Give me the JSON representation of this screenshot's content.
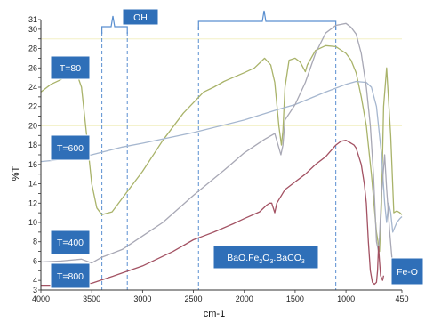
{
  "chart_data": {
    "type": "line",
    "xlabel": "cm-1",
    "ylabel": "%T",
    "xlim": [
      4000,
      450
    ],
    "ylim": [
      3,
      31
    ],
    "x_ticks": [
      4000,
      3500,
      3000,
      2500,
      2000,
      1500,
      1000,
      450
    ],
    "y_ticks": [
      3,
      4,
      5,
      6,
      7,
      8,
      9,
      10,
      11,
      12,
      13,
      14,
      15,
      16,
      17,
      18,
      19,
      20,
      21,
      22,
      23,
      24,
      25,
      26,
      27,
      28,
      29,
      30,
      31
    ],
    "y_tick_labels": [
      "3",
      "4",
      "",
      "6",
      "",
      "8",
      "",
      "10",
      "",
      "12",
      "",
      "14",
      "",
      "16",
      "",
      "18",
      "",
      "20",
      "",
      "22",
      "",
      "24",
      "",
      "26",
      "",
      "28",
      "",
      "30",
      "31"
    ],
    "series": [
      {
        "name": "T=80",
        "color": "#a9b36a",
        "points": [
          [
            4000,
            23.5
          ],
          [
            3900,
            24.3
          ],
          [
            3800,
            24.8
          ],
          [
            3700,
            25.4
          ],
          [
            3650,
            25.5
          ],
          [
            3600,
            24
          ],
          [
            3550,
            19
          ],
          [
            3500,
            14
          ],
          [
            3450,
            11.5
          ],
          [
            3400,
            10.8
          ],
          [
            3300,
            11.1
          ],
          [
            3200,
            12.5
          ],
          [
            3000,
            15.3
          ],
          [
            2800,
            18.5
          ],
          [
            2600,
            21.3
          ],
          [
            2400,
            23.5
          ],
          [
            2300,
            24
          ],
          [
            2200,
            24.6
          ],
          [
            2000,
            25.5
          ],
          [
            1900,
            26
          ],
          [
            1800,
            27
          ],
          [
            1740,
            26.3
          ],
          [
            1700,
            24.5
          ],
          [
            1660,
            20
          ],
          [
            1635,
            18
          ],
          [
            1620,
            19.5
          ],
          [
            1600,
            24
          ],
          [
            1560,
            26.8
          ],
          [
            1500,
            27
          ],
          [
            1450,
            26.6
          ],
          [
            1400,
            25.6
          ],
          [
            1380,
            26.3
          ],
          [
            1300,
            27.8
          ],
          [
            1200,
            28.3
          ],
          [
            1100,
            28.2
          ],
          [
            1000,
            27.5
          ],
          [
            950,
            26.8
          ],
          [
            900,
            25.5
          ],
          [
            850,
            23
          ],
          [
            800,
            20
          ],
          [
            750,
            15
          ],
          [
            700,
            9
          ],
          [
            670,
            7
          ],
          [
            650,
            12
          ],
          [
            630,
            22
          ],
          [
            600,
            26
          ],
          [
            560,
            19
          ],
          [
            530,
            11
          ],
          [
            500,
            11.2
          ],
          [
            470,
            11
          ],
          [
            450,
            10.8
          ]
        ]
      },
      {
        "name": "T=600",
        "color": "#a6b7cf",
        "points": [
          [
            4000,
            16.3
          ],
          [
            3700,
            16.6
          ],
          [
            3500,
            17
          ],
          [
            3200,
            17.8
          ],
          [
            3000,
            18.2
          ],
          [
            2500,
            19.3
          ],
          [
            2000,
            20.6
          ],
          [
            1700,
            21.6
          ],
          [
            1500,
            22.2
          ],
          [
            1200,
            23.5
          ],
          [
            1000,
            24.3
          ],
          [
            900,
            24.6
          ],
          [
            800,
            24.5
          ],
          [
            750,
            24
          ],
          [
            700,
            22
          ],
          [
            650,
            17
          ],
          [
            620,
            12
          ],
          [
            600,
            10
          ],
          [
            580,
            12
          ],
          [
            560,
            11
          ],
          [
            540,
            9
          ],
          [
            520,
            9.5
          ],
          [
            500,
            10
          ],
          [
            470,
            10.4
          ],
          [
            450,
            10.6
          ]
        ]
      },
      {
        "name": "T=400",
        "color": "#a8a8b5",
        "points": [
          [
            4000,
            5.9
          ],
          [
            3800,
            6
          ],
          [
            3600,
            6.2
          ],
          [
            3500,
            5.8
          ],
          [
            3400,
            6.4
          ],
          [
            3200,
            7.2
          ],
          [
            3000,
            8.6
          ],
          [
            2800,
            10
          ],
          [
            2500,
            12.8
          ],
          [
            2200,
            15.4
          ],
          [
            2000,
            17.2
          ],
          [
            1800,
            18.6
          ],
          [
            1700,
            19.2
          ],
          [
            1640,
            17
          ],
          [
            1620,
            18
          ],
          [
            1600,
            20.6
          ],
          [
            1500,
            22.2
          ],
          [
            1400,
            24.5
          ],
          [
            1300,
            27.5
          ],
          [
            1200,
            29.6
          ],
          [
            1100,
            30.4
          ],
          [
            1000,
            30.6
          ],
          [
            950,
            30.2
          ],
          [
            900,
            29.5
          ],
          [
            850,
            27.5
          ],
          [
            800,
            24
          ],
          [
            760,
            20
          ],
          [
            730,
            15
          ],
          [
            700,
            8
          ],
          [
            680,
            7
          ],
          [
            670,
            8.5
          ],
          [
            650,
            13
          ],
          [
            620,
            17
          ],
          [
            600,
            13.5
          ],
          [
            570,
            9
          ],
          [
            550,
            6.5
          ],
          [
            530,
            4.8
          ],
          [
            510,
            4.5
          ],
          [
            500,
            5
          ]
        ]
      },
      {
        "name": "T=800",
        "color": "#a35263",
        "points": [
          [
            4000,
            3.5
          ],
          [
            3800,
            3.5
          ],
          [
            3600,
            3.6
          ],
          [
            3500,
            3.7
          ],
          [
            3300,
            4.4
          ],
          [
            3000,
            5.5
          ],
          [
            2700,
            7
          ],
          [
            2500,
            8.2
          ],
          [
            2400,
            8.6
          ],
          [
            2300,
            9
          ],
          [
            2100,
            9.9
          ],
          [
            2000,
            10.4
          ],
          [
            1850,
            11.1
          ],
          [
            1780,
            11.8
          ],
          [
            1750,
            12
          ],
          [
            1730,
            12
          ],
          [
            1700,
            11
          ],
          [
            1680,
            12
          ],
          [
            1600,
            13.4
          ],
          [
            1500,
            14.2
          ],
          [
            1400,
            15
          ],
          [
            1300,
            16
          ],
          [
            1200,
            16.8
          ],
          [
            1100,
            18
          ],
          [
            1050,
            18.4
          ],
          [
            1000,
            18.5
          ],
          [
            950,
            18.2
          ],
          [
            920,
            18
          ],
          [
            900,
            17.7
          ],
          [
            850,
            16
          ],
          [
            820,
            14
          ],
          [
            800,
            12
          ],
          [
            780,
            8
          ],
          [
            760,
            5
          ],
          [
            740,
            3.8
          ],
          [
            720,
            3.6
          ],
          [
            700,
            3.8
          ],
          [
            690,
            5
          ],
          [
            680,
            7.5
          ],
          [
            670,
            6
          ],
          [
            660,
            4.5
          ],
          [
            640,
            4
          ],
          [
            630,
            4.5
          ]
        ]
      }
    ],
    "annotations": [
      {
        "label": "OH",
        "bracket_range": [
          3400,
          3150
        ]
      },
      {
        "label_main": "BaO.Fe",
        "sub1": "2",
        "label_mid": "O",
        "sub2": "3",
        "label_end": ".BaCO",
        "sub3": "3",
        "bracket_range": [
          2450,
          1100
        ]
      },
      {
        "label": "Fe-O"
      }
    ],
    "series_labels": [
      "T=80",
      "T=600",
      "T=400",
      "T=800"
    ]
  }
}
